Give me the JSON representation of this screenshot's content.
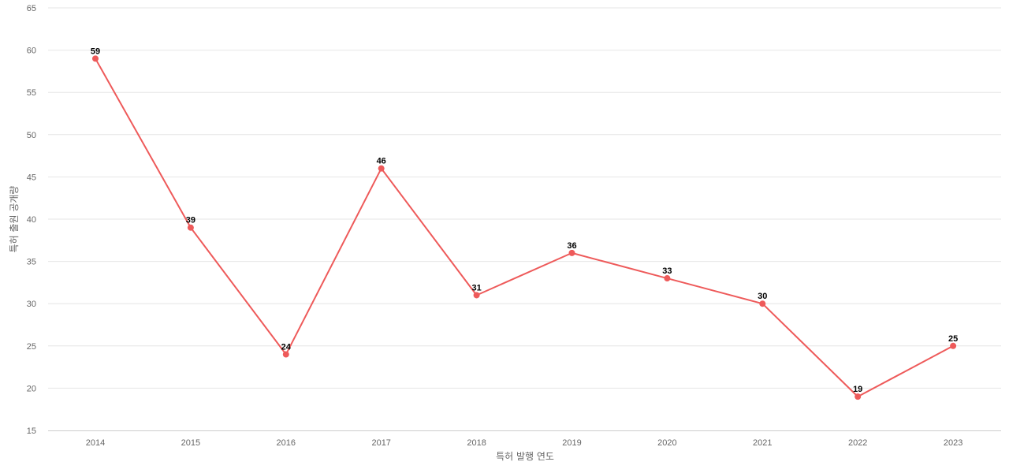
{
  "chart_data": {
    "type": "line",
    "title": "",
    "xlabel": "특허 발행 연도",
    "ylabel": "특허 출원 공개량",
    "categories": [
      "2014",
      "2015",
      "2016",
      "2017",
      "2018",
      "2019",
      "2020",
      "2021",
      "2022",
      "2023"
    ],
    "series": [
      {
        "values": [
          59,
          39,
          24,
          46,
          31,
          36,
          33,
          30,
          19,
          25
        ],
        "color": "#ee5a5a"
      }
    ],
    "ylim": [
      15,
      65
    ],
    "yticks": [
      15,
      20,
      25,
      30,
      35,
      40,
      45,
      50,
      55,
      60,
      65
    ],
    "grid": true,
    "legend": "none",
    "data_labels": true
  }
}
